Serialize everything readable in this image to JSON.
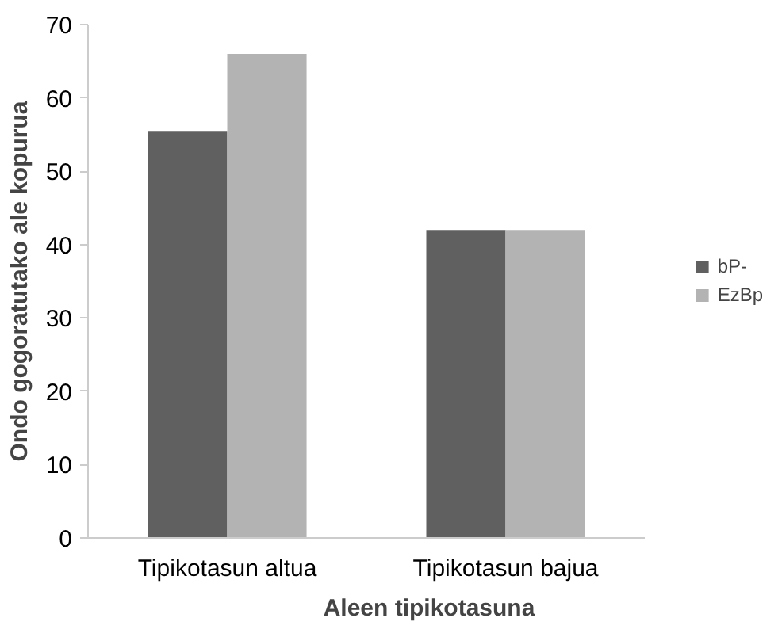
{
  "chart_data": {
    "type": "bar",
    "xlabel": "Aleen tipikotasuna",
    "ylabel": "Ondo gogoratutako ale kopurua",
    "categories": [
      "Tipikotasun altua",
      "Tipikotasun bajua"
    ],
    "series": [
      {
        "name": "bP-",
        "color": "#606060",
        "values": [
          55.5,
          42
        ]
      },
      {
        "name": "EzBp",
        "color": "#b3b3b3",
        "values": [
          66,
          42
        ]
      }
    ],
    "ylim": [
      0,
      70
    ],
    "yticks": [
      0,
      10,
      20,
      30,
      40,
      50,
      60,
      70
    ],
    "grid": false,
    "legend": "right"
  }
}
